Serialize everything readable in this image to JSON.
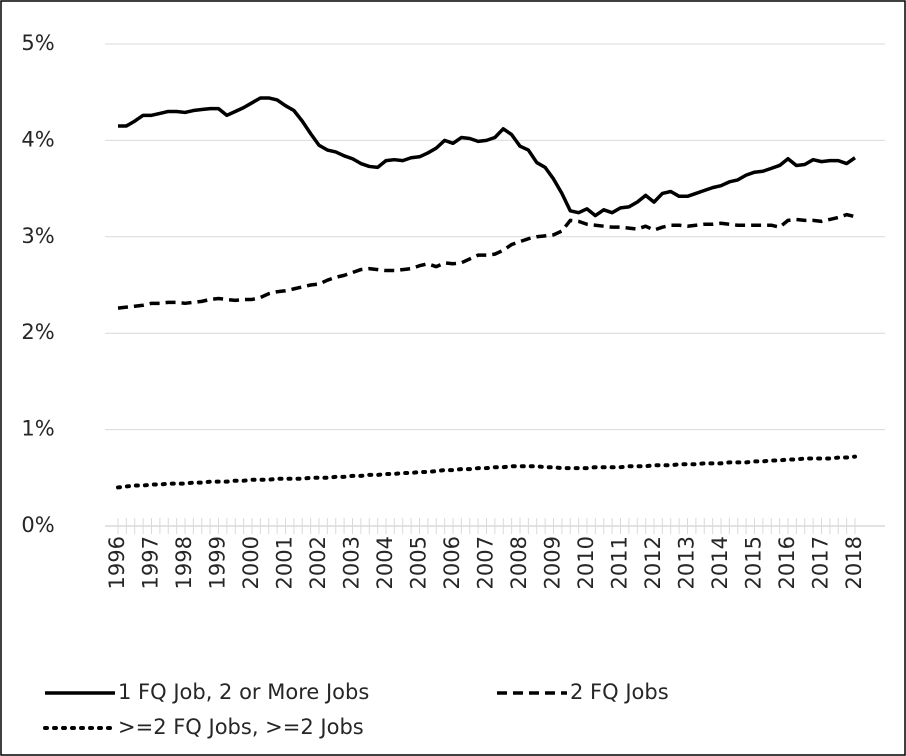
{
  "chart_data": {
    "type": "line",
    "categories": [
      "1996",
      null,
      null,
      null,
      "1997",
      null,
      null,
      null,
      "1998",
      null,
      null,
      null,
      "1999",
      null,
      null,
      null,
      "2000",
      null,
      null,
      null,
      "2001",
      null,
      null,
      null,
      "2002",
      null,
      null,
      null,
      "2003",
      null,
      null,
      null,
      "2004",
      null,
      null,
      null,
      "2005",
      null,
      null,
      null,
      "2006",
      null,
      null,
      null,
      "2007",
      null,
      null,
      null,
      "2008",
      null,
      null,
      null,
      "2009",
      null,
      null,
      null,
      "2010",
      null,
      null,
      null,
      "2011",
      null,
      null,
      null,
      "2012",
      null,
      null,
      null,
      "2013",
      null,
      null,
      null,
      "2014",
      null,
      null,
      null,
      "2015",
      null,
      null,
      null,
      "2016",
      null,
      null,
      null,
      "2017",
      null,
      null,
      null,
      "2018"
    ],
    "series": [
      {
        "name": "1 FQ Job, 2 or More Jobs",
        "color": "#000000",
        "dash": "solid",
        "values": [
          4.15,
          4.15,
          4.2,
          4.26,
          4.26,
          4.28,
          4.3,
          4.3,
          4.29,
          4.31,
          4.32,
          4.33,
          4.33,
          4.26,
          4.3,
          4.34,
          4.39,
          4.44,
          4.44,
          4.42,
          4.36,
          4.31,
          4.2,
          4.07,
          3.95,
          3.9,
          3.88,
          3.84,
          3.81,
          3.76,
          3.73,
          3.72,
          3.79,
          3.8,
          3.79,
          3.82,
          3.83,
          3.87,
          3.92,
          4.0,
          3.97,
          4.03,
          4.02,
          3.99,
          4.0,
          4.03,
          4.12,
          4.06,
          3.94,
          3.9,
          3.77,
          3.72,
          3.6,
          3.45,
          3.27,
          3.25,
          3.29,
          3.22,
          3.28,
          3.25,
          3.3,
          3.31,
          3.36,
          3.43,
          3.36,
          3.45,
          3.47,
          3.42,
          3.42,
          3.45,
          3.48,
          3.51,
          3.53,
          3.57,
          3.59,
          3.64,
          3.67,
          3.68,
          3.71,
          3.74,
          3.81,
          3.74,
          3.75,
          3.8,
          3.78,
          3.79,
          3.79,
          3.76,
          3.82
        ]
      },
      {
        "name": "2 FQ Jobs",
        "color": "#000000",
        "dash": "dashed",
        "values": [
          2.26,
          2.27,
          2.28,
          2.29,
          2.31,
          2.31,
          2.32,
          2.32,
          2.31,
          2.32,
          2.33,
          2.35,
          2.36,
          2.35,
          2.34,
          2.35,
          2.35,
          2.37,
          2.41,
          2.43,
          2.44,
          2.46,
          2.48,
          2.5,
          2.51,
          2.55,
          2.58,
          2.6,
          2.63,
          2.66,
          2.67,
          2.66,
          2.65,
          2.65,
          2.66,
          2.67,
          2.7,
          2.72,
          2.69,
          2.73,
          2.72,
          2.73,
          2.77,
          2.81,
          2.81,
          2.82,
          2.86,
          2.92,
          2.95,
          2.98,
          3.0,
          3.01,
          3.02,
          3.06,
          3.17,
          3.16,
          3.13,
          3.12,
          3.11,
          3.1,
          3.1,
          3.09,
          3.08,
          3.11,
          3.07,
          3.1,
          3.12,
          3.12,
          3.11,
          3.12,
          3.13,
          3.13,
          3.14,
          3.13,
          3.12,
          3.12,
          3.12,
          3.12,
          3.12,
          3.1,
          3.17,
          3.18,
          3.17,
          3.17,
          3.16,
          3.18,
          3.2,
          3.23,
          3.21
        ]
      },
      {
        "name": ">=2 FQ Jobs, >=2 Jobs",
        "color": "#000000",
        "dash": "dotted",
        "values": [
          0.4,
          0.41,
          0.42,
          0.42,
          0.43,
          0.43,
          0.44,
          0.44,
          0.44,
          0.45,
          0.45,
          0.46,
          0.46,
          0.46,
          0.47,
          0.47,
          0.48,
          0.48,
          0.48,
          0.49,
          0.49,
          0.49,
          0.49,
          0.5,
          0.5,
          0.5,
          0.51,
          0.51,
          0.52,
          0.52,
          0.53,
          0.53,
          0.54,
          0.54,
          0.55,
          0.55,
          0.56,
          0.56,
          0.57,
          0.58,
          0.58,
          0.59,
          0.59,
          0.6,
          0.6,
          0.61,
          0.61,
          0.62,
          0.62,
          0.62,
          0.62,
          0.61,
          0.61,
          0.6,
          0.6,
          0.6,
          0.6,
          0.61,
          0.61,
          0.61,
          0.61,
          0.62,
          0.62,
          0.62,
          0.63,
          0.63,
          0.63,
          0.64,
          0.64,
          0.64,
          0.65,
          0.65,
          0.65,
          0.66,
          0.66,
          0.66,
          0.67,
          0.67,
          0.68,
          0.68,
          0.69,
          0.69,
          0.7,
          0.7,
          0.7,
          0.7,
          0.71,
          0.71,
          0.72
        ]
      }
    ],
    "ylim": [
      0,
      5
    ],
    "yticks": [
      {
        "value": 0,
        "label": "0%"
      },
      {
        "value": 1,
        "label": "1%"
      },
      {
        "value": 2,
        "label": "2%"
      },
      {
        "value": 3,
        "label": "3%"
      },
      {
        "value": 4,
        "label": "4%"
      },
      {
        "value": 5,
        "label": "5%"
      }
    ],
    "grid": true,
    "legend": "bottom"
  }
}
